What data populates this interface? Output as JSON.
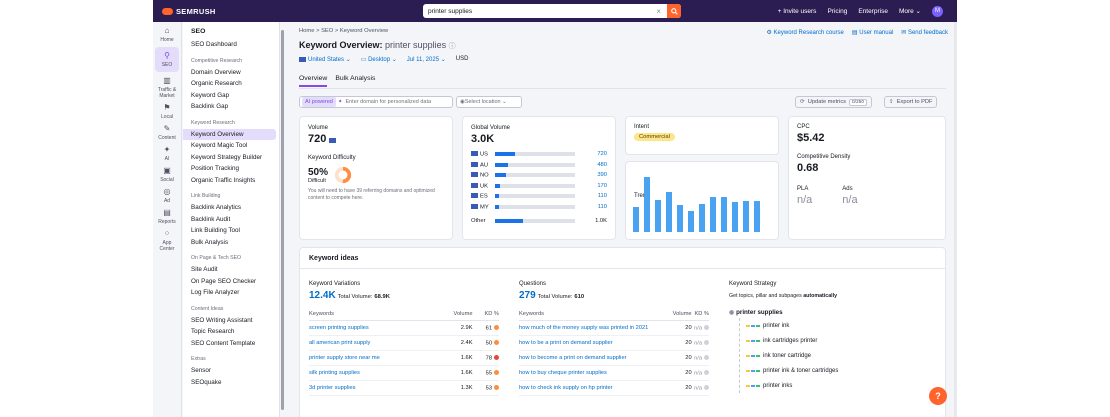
{
  "topbar": {
    "logo": "SEMRUSH",
    "search_value": "printer supplies",
    "nav": [
      "+ Invite users",
      "Pricing",
      "Enterprise",
      "More ⌄"
    ],
    "avatar": "M"
  },
  "rail": [
    {
      "label": "Home",
      "icon": "home-icon"
    },
    {
      "label": "SEO",
      "icon": "seo-icon"
    },
    {
      "label": "Traffic & Market",
      "icon": "bar-chart-icon"
    },
    {
      "label": "Local",
      "icon": "pin-icon"
    },
    {
      "label": "Content",
      "icon": "pen-icon"
    },
    {
      "label": "AI",
      "icon": "sparkle-icon"
    },
    {
      "label": "Social",
      "icon": "chat-icon"
    },
    {
      "label": "Ad",
      "icon": "target-icon"
    },
    {
      "label": "Reports",
      "icon": "doc-icon"
    },
    {
      "label": "App Center",
      "icon": "grid-icon"
    }
  ],
  "menu": {
    "title": "SEO",
    "dashboard": "SEO Dashboard",
    "groups": [
      {
        "header": "Competitive Research",
        "items": [
          "Domain Overview",
          "Organic Research",
          "Keyword Gap",
          "Backlink Gap"
        ]
      },
      {
        "header": "Keyword Research",
        "items": [
          "Keyword Overview",
          "Keyword Magic Tool",
          "Keyword Strategy Builder",
          "Position Tracking",
          "Organic Traffic Insights"
        ]
      },
      {
        "header": "Link Building",
        "items": [
          "Backlink Analytics",
          "Backlink Audit",
          "Link Building Tool",
          "Bulk Analysis"
        ]
      },
      {
        "header": "On Page & Tech SEO",
        "items": [
          "Site Audit",
          "On Page SEO Checker",
          "Log File Analyzer"
        ]
      },
      {
        "header": "Content Ideas",
        "items": [
          "SEO Writing Assistant",
          "Topic Research",
          "SEO Content Template"
        ]
      },
      {
        "header": "Extras",
        "items": [
          "Sensor",
          "SEOquake"
        ]
      }
    ]
  },
  "breadcrumb": "Home  >  SEO  >  Keyword Overview",
  "title": {
    "prefix": "Keyword Overview: ",
    "keyword": "printer supplies"
  },
  "toplinks": [
    "Keyword Research course",
    "User manual",
    "Send feedback"
  ],
  "filters": {
    "country": "United States ⌄",
    "device": "Desktop ⌄",
    "date": "Jul 11, 2025 ⌄",
    "currency": "USD"
  },
  "tabs": [
    "Overview",
    "Bulk Analysis"
  ],
  "ai": {
    "badge": "AI powered",
    "placeholder": "Enter domain for personalized data"
  },
  "location": "Select location ⌄",
  "buttons": {
    "update": "Update metrics",
    "update_count": "0/250",
    "export": "Export to PDF"
  },
  "volume": {
    "label": "Volume",
    "value": "720"
  },
  "kd": {
    "label": "Keyword Difficulty",
    "value": "50%",
    "level": "Difficult",
    "percent": 50,
    "note": "You will need to have 39 referring domains and optimized content to compete here."
  },
  "global": {
    "label": "Global Volume",
    "value": "3.0K",
    "rows": [
      {
        "cc": "US",
        "v": "720",
        "f": 0.24
      },
      {
        "cc": "AU",
        "v": "480",
        "f": 0.16
      },
      {
        "cc": "NO",
        "v": "390",
        "f": 0.13
      },
      {
        "cc": "UK",
        "v": "170",
        "f": 0.06
      },
      {
        "cc": "ES",
        "v": "110",
        "f": 0.04
      },
      {
        "cc": "MY",
        "v": "110",
        "f": 0.04
      }
    ],
    "other": {
      "cc": "Other",
      "v": "1.0K",
      "f": 0.34
    }
  },
  "intent": {
    "label": "Intent",
    "value": "Commercial"
  },
  "trend": {
    "label": "Trend",
    "values": [
      0.45,
      0.98,
      0.58,
      0.72,
      0.48,
      0.37,
      0.5,
      0.63,
      0.63,
      0.53,
      0.55,
      0.55
    ]
  },
  "cpc": {
    "label": "CPC",
    "value": "$5.42"
  },
  "density": {
    "label": "Competitive Density",
    "value": "0.68"
  },
  "pla": {
    "label": "PLA",
    "value": "n/a"
  },
  "ads": {
    "label": "Ads",
    "value": "n/a"
  },
  "ideas": {
    "title": "Keyword ideas",
    "variations": {
      "label": "Keyword Variations",
      "count": "12.4K",
      "tv_label": "Total Volume:",
      "tv": "68.9K"
    },
    "questions": {
      "label": "Questions",
      "count": "279",
      "tv_label": "Total Volume:",
      "tv": "610"
    },
    "cols": [
      "Keywords",
      "Volume",
      "KD %"
    ],
    "var_rows": [
      {
        "k": "screen printing supplies",
        "v": "2.9K",
        "kd": "61",
        "c": "#ff8c42"
      },
      {
        "k": "all american print supply",
        "v": "2.4K",
        "kd": "50",
        "c": "#ff8c42"
      },
      {
        "k": "printer supply store near me",
        "v": "1.6K",
        "kd": "78",
        "c": "#e8453c"
      },
      {
        "k": "silk printing supplies",
        "v": "1.6K",
        "kd": "55",
        "c": "#ff8c42"
      },
      {
        "k": "3d printer supplies",
        "v": "1.3K",
        "kd": "53",
        "c": "#ff8c42"
      }
    ],
    "q_rows": [
      {
        "k": "how much of the money supply was printed in 2021",
        "v": "20",
        "kd": "n/a"
      },
      {
        "k": "how to be a print on demand supplier",
        "v": "20",
        "kd": "n/a"
      },
      {
        "k": "how to become a print on demand supplier",
        "v": "20",
        "kd": "n/a"
      },
      {
        "k": "how to buy cheque printer supplies",
        "v": "20",
        "kd": "n/a"
      },
      {
        "k": "how to check ink supply on hp printer",
        "v": "20",
        "kd": "n/a"
      }
    ],
    "strategy": {
      "label": "Keyword Strategy",
      "desc_prefix": "Get topics, pillar and subpages ",
      "desc_bold": "automatically",
      "root": "printer supplies",
      "nodes": [
        "printer ink",
        "ink cartridges printer",
        "ink toner cartridge",
        "printer ink & toner cartridges",
        "printer inks"
      ]
    }
  },
  "help": "?"
}
